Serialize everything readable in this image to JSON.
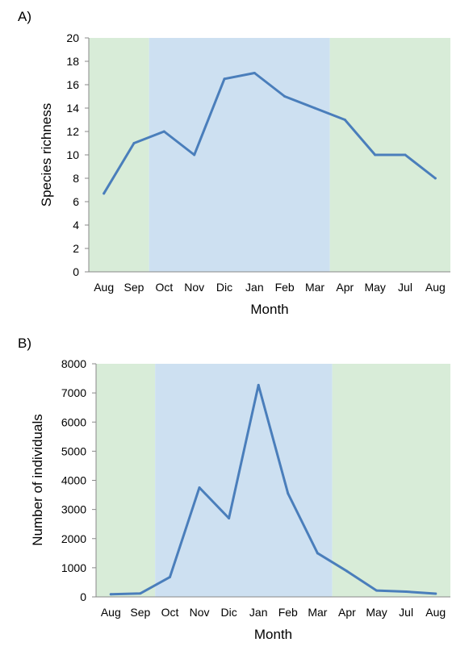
{
  "chart_data": [
    {
      "panel_label": "A)",
      "type": "line",
      "categories": [
        "Aug",
        "Sep",
        "Oct",
        "Nov",
        "Dic",
        "Jan",
        "Feb",
        "Mar",
        "Apr",
        "May",
        "Jul",
        "Aug"
      ],
      "values": [
        6.7,
        11,
        12,
        10,
        16.5,
        17,
        15,
        14,
        13,
        10,
        10,
        8
      ],
      "xlabel": "Month",
      "ylabel": "Species richness",
      "ylim": [
        0,
        20
      ],
      "yticks": [
        "0",
        "2",
        "4",
        "6",
        "8",
        "10",
        "12",
        "14",
        "16",
        "18",
        "20"
      ],
      "grid": false,
      "line_color": "#4a7ebb",
      "background_bands": [
        {
          "from_category": 0,
          "to_category": 1.5,
          "color": "#d8ecd8"
        },
        {
          "from_category": 1.5,
          "to_category": 7.5,
          "color": "#cde0f1"
        },
        {
          "from_category": 7.5,
          "to_category": 11,
          "color": "#d8ecd8"
        }
      ]
    },
    {
      "panel_label": "B)",
      "type": "line",
      "categories": [
        "Aug",
        "Sep",
        "Oct",
        "Nov",
        "Dic",
        "Jan",
        "Feb",
        "Mar",
        "Apr",
        "May",
        "Jul",
        "Aug"
      ],
      "values": [
        90,
        120,
        680,
        3750,
        2700,
        7270,
        3550,
        1500,
        880,
        220,
        180,
        110
      ],
      "xlabel": "Month",
      "ylabel": "Number of individuals",
      "ylim": [
        0,
        8000
      ],
      "yticks": [
        "0",
        "1000",
        "2000",
        "3000",
        "4000",
        "5000",
        "6000",
        "7000",
        "8000"
      ],
      "grid": false,
      "line_color": "#4a7ebb",
      "background_bands": [
        {
          "from_category": 0,
          "to_category": 1.5,
          "color": "#d8ecd8"
        },
        {
          "from_category": 1.5,
          "to_category": 7.5,
          "color": "#cde0f1"
        },
        {
          "from_category": 7.5,
          "to_category": 11,
          "color": "#d8ecd8"
        }
      ]
    }
  ]
}
